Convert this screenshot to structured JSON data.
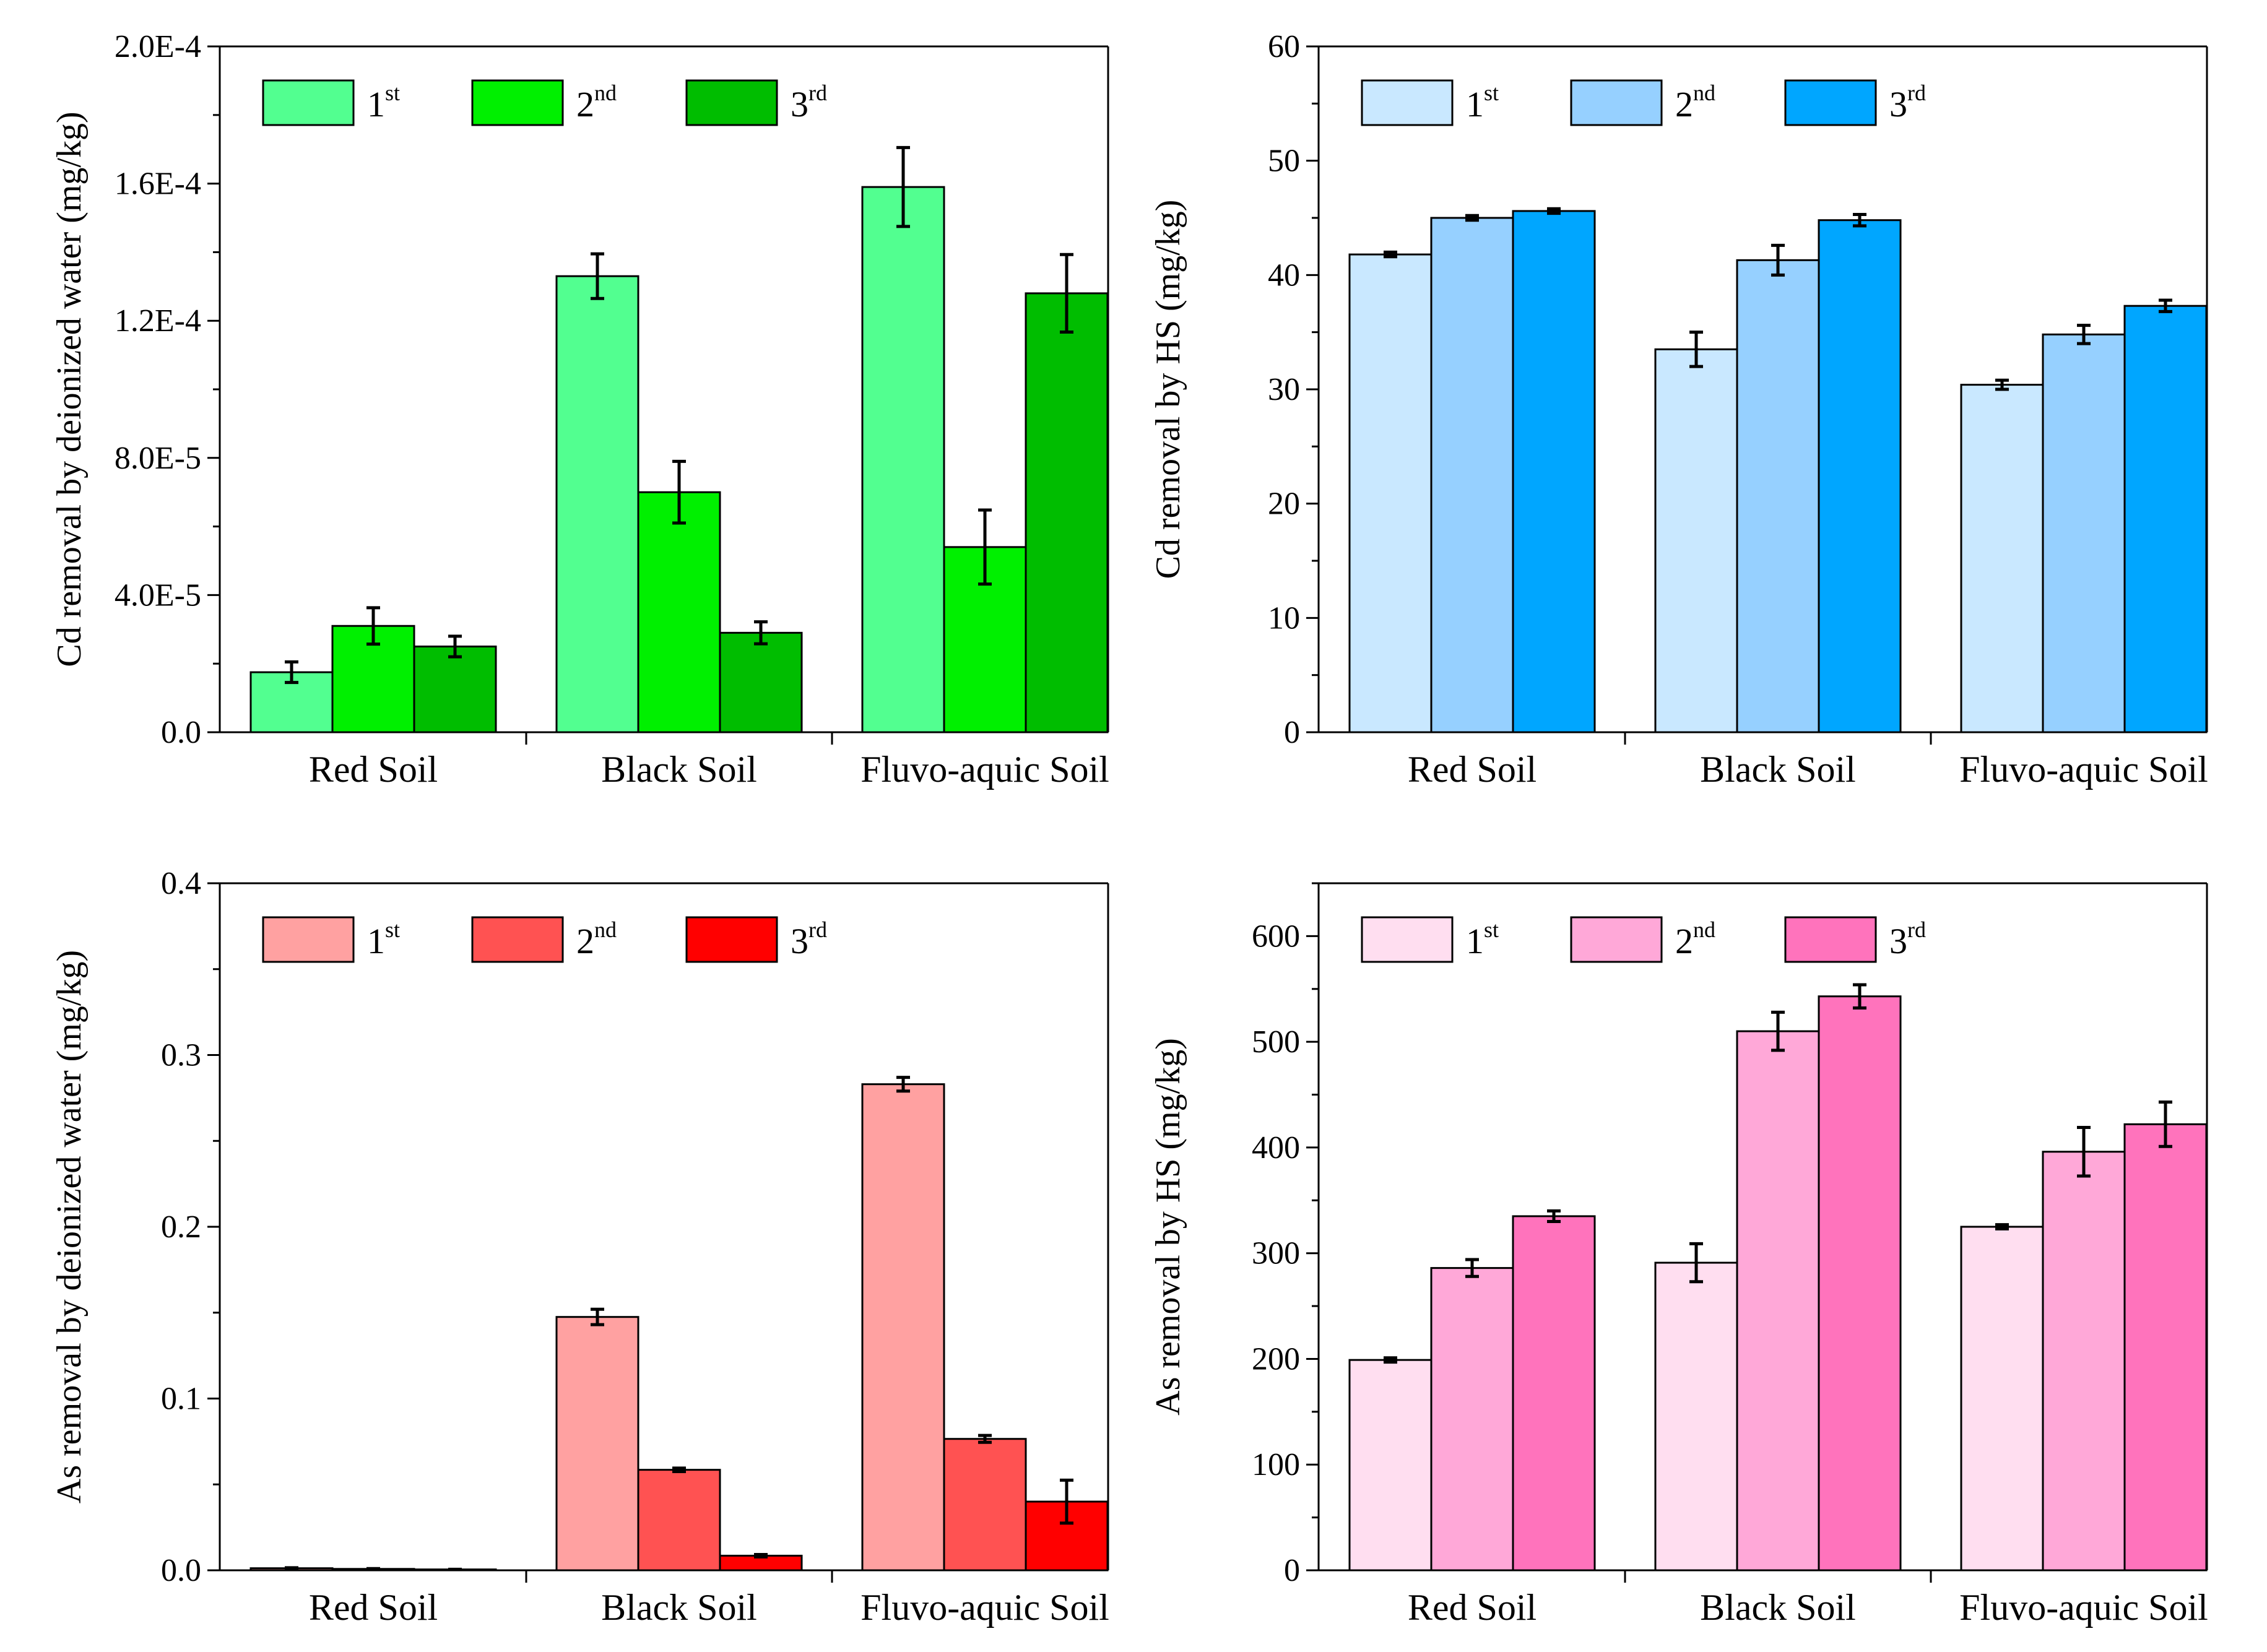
{
  "chart_data": [
    {
      "id": "cd-water",
      "type": "bar",
      "ylabel": "Cd removal by deionized water (mg/kg)",
      "xlabel": "",
      "categories": [
        "Red Soil",
        "Black Soil",
        "Fluvo-aquic Soil"
      ],
      "ylim": [
        0,
        0.0002
      ],
      "yticks": [
        0,
        4e-05,
        8e-05,
        0.00012,
        0.00016,
        0.0002
      ],
      "ytick_labels": [
        "0.0",
        "4.0E-5",
        "8.0E-5",
        "1.2E-4",
        "1.6E-4",
        "2.0E-4"
      ],
      "series": [
        {
          "name": "1st",
          "base": "1",
          "sup": "st",
          "color": "#52FF90",
          "values": [
            1.75e-05,
            0.000133,
            0.000159
          ],
          "errors": [
            3e-06,
            6.5e-06,
            1.15e-05
          ]
        },
        {
          "name": "2nd",
          "base": "2",
          "sup": "nd",
          "color": "#00F000",
          "values": [
            3.1e-05,
            7e-05,
            5.4e-05
          ],
          "errors": [
            5.3e-06,
            9e-06,
            1.08e-05
          ]
        },
        {
          "name": "3rd",
          "base": "3",
          "sup": "rd",
          "color": "#00BD00",
          "values": [
            2.5e-05,
            2.9e-05,
            0.000128
          ],
          "errors": [
            3e-06,
            3.2e-06,
            1.13e-05
          ]
        }
      ]
    },
    {
      "id": "cd-hs",
      "type": "bar",
      "ylabel": "Cd removal by HS (mg/kg)",
      "xlabel": "",
      "categories": [
        "Red Soil",
        "Black Soil",
        "Fluvo-aquic Soil"
      ],
      "ylim": [
        0,
        60
      ],
      "yticks": [
        0,
        10,
        20,
        30,
        40,
        50,
        60
      ],
      "ytick_labels": [
        "0",
        "10",
        "20",
        "30",
        "40",
        "50",
        "60"
      ],
      "series": [
        {
          "name": "1st",
          "base": "1",
          "sup": "st",
          "color": "#C9E8FF",
          "values": [
            41.8,
            33.5,
            30.4
          ],
          "errors": [
            0.2,
            1.5,
            0.4
          ]
        },
        {
          "name": "2nd",
          "base": "2",
          "sup": "nd",
          "color": "#96D0FF",
          "values": [
            45.0,
            41.3,
            34.8
          ],
          "errors": [
            0.2,
            1.3,
            0.8
          ]
        },
        {
          "name": "3rd",
          "base": "3",
          "sup": "rd",
          "color": "#00A6FF",
          "values": [
            45.6,
            44.8,
            37.3
          ],
          "errors": [
            0.2,
            0.5,
            0.5
          ]
        }
      ]
    },
    {
      "id": "as-water",
      "type": "bar",
      "ylabel": "As removal by deionized water (mg/kg)",
      "xlabel": "",
      "categories": [
        "Red Soil",
        "Black Soil",
        "Fluvo-aquic Soil"
      ],
      "ylim": [
        0,
        0.4
      ],
      "yticks": [
        0,
        0.1,
        0.2,
        0.3,
        0.4
      ],
      "ytick_labels": [
        "0.0",
        "0.1",
        "0.2",
        "0.3",
        "0.4"
      ],
      "series": [
        {
          "name": "1st",
          "base": "1",
          "sup": "st",
          "color": "#FFA1A1",
          "values": [
            0.0012,
            0.1475,
            0.283
          ],
          "errors": [
            0.0003,
            0.0045,
            0.004
          ]
        },
        {
          "name": "2nd",
          "base": "2",
          "sup": "nd",
          "color": "#FF5252",
          "values": [
            0.0008,
            0.0585,
            0.0765
          ],
          "errors": [
            0.0002,
            0.001,
            0.002
          ]
        },
        {
          "name": "3rd",
          "base": "3",
          "sup": "rd",
          "color": "#FF0000",
          "values": [
            0.0005,
            0.0085,
            0.04
          ],
          "errors": [
            0.0001,
            0.0007,
            0.0125
          ]
        }
      ]
    },
    {
      "id": "as-hs",
      "type": "bar",
      "ylabel": "As  removal by HS (mg/kg)",
      "xlabel": "",
      "categories": [
        "Red Soil",
        "Black Soil",
        "Fluvo-aquic Soil"
      ],
      "ylim": [
        0,
        650
      ],
      "yticks": [
        0,
        100,
        200,
        300,
        400,
        500,
        600
      ],
      "ytick_labels": [
        "0",
        "100",
        "200",
        "300",
        "400",
        "500",
        "600"
      ],
      "series": [
        {
          "name": "1st",
          "base": "1",
          "sup": "st",
          "color": "#FFDEF0",
          "values": [
            199,
            291,
            325
          ],
          "errors": [
            2,
            18,
            2
          ]
        },
        {
          "name": "2nd",
          "base": "2",
          "sup": "nd",
          "color": "#FFA8D8",
          "values": [
            286,
            510,
            396
          ],
          "errors": [
            8,
            18,
            23
          ]
        },
        {
          "name": "3rd",
          "base": "3",
          "sup": "rd",
          "color": "#FF73BC",
          "values": [
            335,
            543,
            422
          ],
          "errors": [
            5,
            11,
            21
          ]
        }
      ]
    }
  ]
}
